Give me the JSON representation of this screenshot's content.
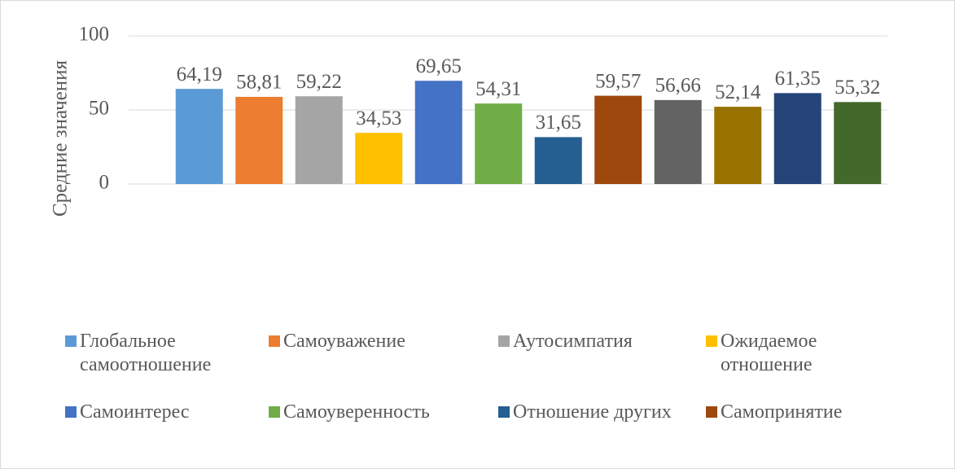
{
  "chart_data": {
    "type": "bar",
    "ylabel": "Средние значения",
    "ylim": [
      0,
      100
    ],
    "yticks": [
      0,
      50,
      100
    ],
    "grid": true,
    "series": [
      {
        "name": "Глобальное самоотношение",
        "color": "#5b9bd5",
        "values": [
          64.19
        ],
        "value_labels": [
          "64,19"
        ]
      },
      {
        "name": "Самоуважение",
        "color": "#ed7d31",
        "values": [
          58.81
        ],
        "value_labels": [
          "58,81"
        ]
      },
      {
        "name": "Аутосимпатия",
        "color": "#a5a5a5",
        "values": [
          59.22
        ],
        "value_labels": [
          "59,22"
        ]
      },
      {
        "name": "Ожидаемое отношение",
        "color": "#ffc000",
        "values": [
          34.53
        ],
        "value_labels": [
          "34,53"
        ]
      },
      {
        "name": "Самоинтерес",
        "color": "#4472c4",
        "values": [
          69.65
        ],
        "value_labels": [
          "69,65"
        ]
      },
      {
        "name": "Самоуверенность",
        "color": "#70ad47",
        "values": [
          54.31
        ],
        "value_labels": [
          "54,31"
        ]
      },
      {
        "name": "Отношение других",
        "color": "#255e91",
        "values": [
          31.65
        ],
        "value_labels": [
          "31,65"
        ]
      },
      {
        "name": "Самопринятие",
        "color": "#9e480e",
        "values": [
          59.57
        ],
        "value_labels": [
          "59,57"
        ]
      },
      {
        "color": "#636363",
        "values": [
          56.66
        ],
        "value_labels": [
          "56,66"
        ]
      },
      {
        "color": "#997300",
        "values": [
          52.14
        ],
        "value_labels": [
          "52,14"
        ]
      },
      {
        "color": "#264478",
        "values": [
          61.35
        ],
        "value_labels": [
          "61,35"
        ]
      },
      {
        "color": "#43682b",
        "values": [
          55.32
        ],
        "value_labels": [
          "55,32"
        ]
      }
    ]
  }
}
